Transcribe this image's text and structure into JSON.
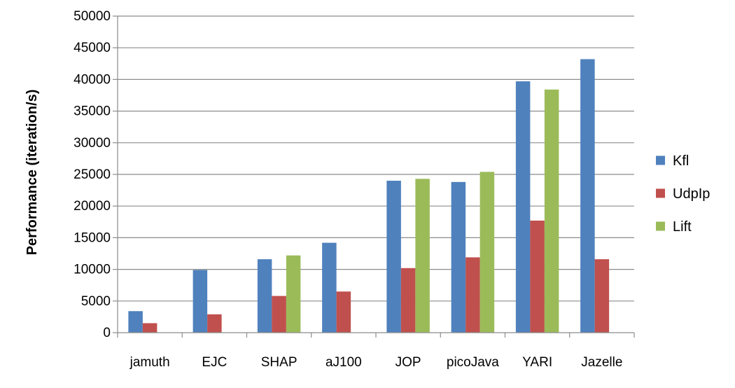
{
  "chart_data": {
    "type": "bar",
    "title": "",
    "xlabel": "",
    "ylabel": "Performance (iteration/s)",
    "ylim": [
      0,
      50000
    ],
    "yticks": [
      0,
      5000,
      10000,
      15000,
      20000,
      25000,
      30000,
      35000,
      40000,
      45000,
      50000
    ],
    "grid": "horizontal",
    "legend_position": "right",
    "categories": [
      "jamuth",
      "EJC",
      "SHAP",
      "aJ100",
      "JOP",
      "picoJava",
      "YARI",
      "Jazelle"
    ],
    "series": [
      {
        "name": "Kfl",
        "color": "#4F81BD",
        "values": [
          3400,
          9900,
          11600,
          14200,
          24000,
          23800,
          39700,
          43200
        ]
      },
      {
        "name": "UdpIp",
        "color": "#C0504D",
        "values": [
          1500,
          2900,
          5800,
          6500,
          10200,
          11900,
          17700,
          11600
        ]
      },
      {
        "name": "Lift",
        "color": "#9BBB59",
        "values": [
          null,
          null,
          12200,
          null,
          24300,
          25400,
          38400,
          null
        ]
      }
    ]
  }
}
